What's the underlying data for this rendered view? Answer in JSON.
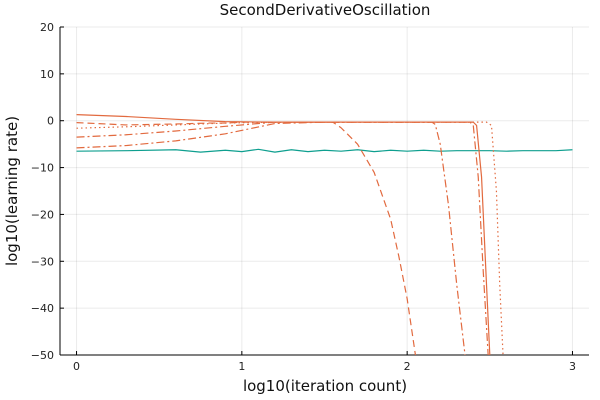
{
  "chart_data": {
    "type": "line",
    "title": "SecondDerivativeOscillation",
    "xlabel": "log10(iteration count)",
    "ylabel": "log10(learning rate)",
    "xlim": [
      -0.1,
      3.1
    ],
    "ylim": [
      -50,
      20
    ],
    "xticks": [
      0,
      1,
      2,
      3
    ],
    "yticks": [
      -50,
      -40,
      -30,
      -20,
      -10,
      0,
      10,
      20
    ],
    "grid": true,
    "legend": "none",
    "colors": {
      "orange": "#e26a3f",
      "teal": "#0e9f8f"
    },
    "series": [
      {
        "color": "#0e9f8f",
        "dash": "solid",
        "x": [
          0,
          0.3,
          0.6,
          0.75,
          0.9,
          1.0,
          1.1,
          1.2,
          1.3,
          1.4,
          1.5,
          1.6,
          1.7,
          1.8,
          1.9,
          2.0,
          2.1,
          2.2,
          2.3,
          2.4,
          2.5,
          2.6,
          2.7,
          2.8,
          2.9,
          3.0
        ],
        "y": [
          -6.5,
          -6.4,
          -6.2,
          -6.7,
          -6.3,
          -6.6,
          -6.1,
          -6.7,
          -6.2,
          -6.6,
          -6.3,
          -6.5,
          -6.2,
          -6.6,
          -6.3,
          -6.5,
          -6.3,
          -6.5,
          -6.4,
          -6.4,
          -6.4,
          -6.5,
          -6.4,
          -6.4,
          -6.4,
          -6.2
        ]
      },
      {
        "color": "#e26a3f",
        "dash": "solid",
        "x": [
          0,
          0.3,
          0.6,
          0.9,
          1.2,
          1.5,
          1.8,
          2.1,
          2.3,
          2.4,
          2.42,
          2.45,
          2.48,
          2.5
        ],
        "y": [
          1.3,
          0.9,
          0.3,
          -0.2,
          -0.3,
          -0.3,
          -0.3,
          -0.3,
          -0.3,
          -0.3,
          -1,
          -12,
          -35,
          -50
        ]
      },
      {
        "color": "#e26a3f",
        "dash": "dot",
        "x": [
          0,
          0.3,
          0.6,
          0.9,
          1.2,
          1.5,
          1.8,
          2.1,
          2.3,
          2.45,
          2.48,
          2.51,
          2.54,
          2.56,
          2.58
        ],
        "y": [
          -1.6,
          -1.3,
          -0.9,
          -0.5,
          -0.3,
          -0.3,
          -0.3,
          -0.3,
          -0.3,
          -0.3,
          -0.3,
          -1,
          -15,
          -35,
          -50
        ]
      },
      {
        "color": "#e26a3f",
        "dash": "dash",
        "x": [
          0,
          0.3,
          0.6,
          0.8,
          0.9,
          1.0,
          1.15,
          1.3,
          1.5,
          1.55,
          1.6,
          1.7,
          1.8,
          1.9,
          1.95,
          2.0,
          2.05
        ],
        "y": [
          -0.4,
          -0.9,
          -0.7,
          -0.5,
          -0.5,
          -0.3,
          -0.3,
          -0.3,
          -0.3,
          -0.3,
          -1.5,
          -5,
          -11,
          -21,
          -29,
          -38,
          -50
        ]
      },
      {
        "color": "#e26a3f",
        "dash": "dashdot",
        "x": [
          0,
          0.3,
          0.6,
          0.9,
          1.2,
          1.5,
          1.8,
          2.1,
          2.15,
          2.17,
          2.2,
          2.25,
          2.3,
          2.35
        ],
        "y": [
          -3.5,
          -3.0,
          -2.2,
          -1.2,
          -0.3,
          -0.3,
          -0.3,
          -0.3,
          -0.3,
          -0.8,
          -5,
          -18,
          -35,
          -50
        ]
      },
      {
        "color": "#e26a3f",
        "dash": "dashdot",
        "x": [
          0,
          0.3,
          0.6,
          0.9,
          1.2,
          1.5,
          1.8,
          2.1,
          2.3,
          2.38,
          2.4,
          2.43,
          2.46,
          2.49
        ],
        "y": [
          -5.8,
          -5.3,
          -4.3,
          -2.8,
          -0.6,
          -0.3,
          -0.3,
          -0.3,
          -0.3,
          -0.3,
          -1,
          -12,
          -32,
          -50
        ]
      }
    ]
  }
}
